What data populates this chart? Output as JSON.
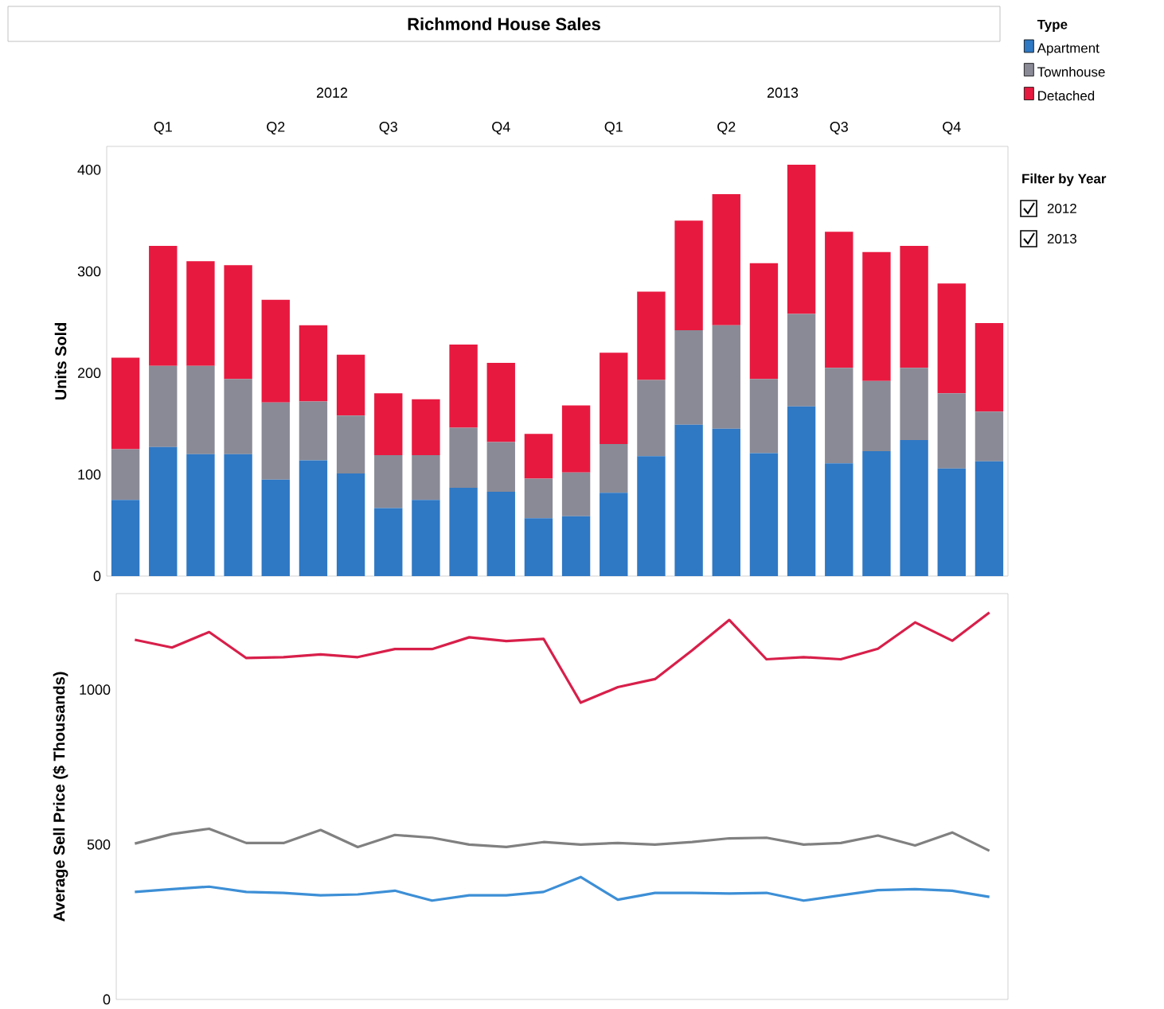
{
  "chart_data": [
    {
      "type": "bar",
      "title": "Richmond House Sales",
      "ylabel": "Units Sold",
      "stacked": true,
      "legend": "right",
      "legend_title": "Type",
      "categories": [
        null,
        "Q1",
        null,
        null,
        "Q2",
        null,
        null,
        "Q3",
        null,
        null,
        "Q4",
        null,
        null,
        "Q1",
        null,
        null,
        "Q2",
        null,
        null,
        "Q3",
        null,
        null,
        "Q4",
        null
      ],
      "annotations": [
        "2012",
        "2013"
      ],
      "ylim": [
        0,
        423
      ],
      "yticks": [
        0,
        100,
        200,
        300,
        400
      ],
      "series": [
        {
          "name": "Apartment",
          "color": "#2f78c4",
          "values": [
            75,
            127,
            120,
            120,
            95,
            114,
            101,
            67,
            75,
            87,
            83,
            57,
            59,
            82,
            118,
            149,
            145,
            121,
            167,
            111,
            123,
            134,
            106,
            113
          ]
        },
        {
          "name": "Townhouse",
          "color": "#8a8a96",
          "values": [
            50,
            80,
            87,
            74,
            76,
            58,
            57,
            52,
            44,
            59,
            49,
            39,
            43,
            48,
            75,
            93,
            102,
            73,
            91,
            94,
            69,
            71,
            74,
            49
          ]
        },
        {
          "name": "Detached",
          "color": "#e8193f",
          "values": [
            90,
            118,
            103,
            112,
            101,
            75,
            60,
            61,
            55,
            82,
            78,
            44,
            66,
            90,
            87,
            108,
            129,
            114,
            147,
            134,
            127,
            120,
            108,
            87
          ]
        }
      ]
    },
    {
      "type": "line",
      "ylabel": "Average Sell Price ($ Thousands)",
      "tick_labels": "y",
      "categories": [
        null,
        null,
        null,
        null,
        null,
        null,
        null,
        null,
        null,
        null,
        null,
        null,
        null,
        null,
        null,
        null,
        null,
        null,
        null,
        null,
        null,
        null,
        null,
        null
      ],
      "ylim": [
        0,
        1310
      ],
      "yticks": [
        0,
        500,
        1000
      ],
      "series": [
        {
          "color": "#3d8fd6",
          "values": [
            347,
            356,
            364,
            347,
            344,
            336,
            339,
            351,
            319,
            336,
            336,
            347,
            395,
            322,
            344,
            344,
            342,
            344,
            319,
            336,
            353,
            356,
            351,
            331
          ]
        },
        {
          "color": "#808080",
          "values": [
            503,
            534,
            551,
            505,
            505,
            547,
            492,
            531,
            522,
            500,
            492,
            508,
            500,
            505,
            500,
            508,
            520,
            522,
            500,
            505,
            529,
            497,
            539,
            480
          ]
        },
        {
          "color": "#d81f4a",
          "values": [
            1161,
            1136,
            1186,
            1102,
            1105,
            1114,
            1105,
            1131,
            1131,
            1169,
            1157,
            1164,
            958,
            1008,
            1034,
            1127,
            1225,
            1098,
            1105,
            1098,
            1132,
            1217,
            1158,
            1249
          ]
        }
      ]
    },
    {
      "type": "other",
      "title": "Filter by Year",
      "annotations": [
        "2012",
        "2013"
      ]
    }
  ]
}
